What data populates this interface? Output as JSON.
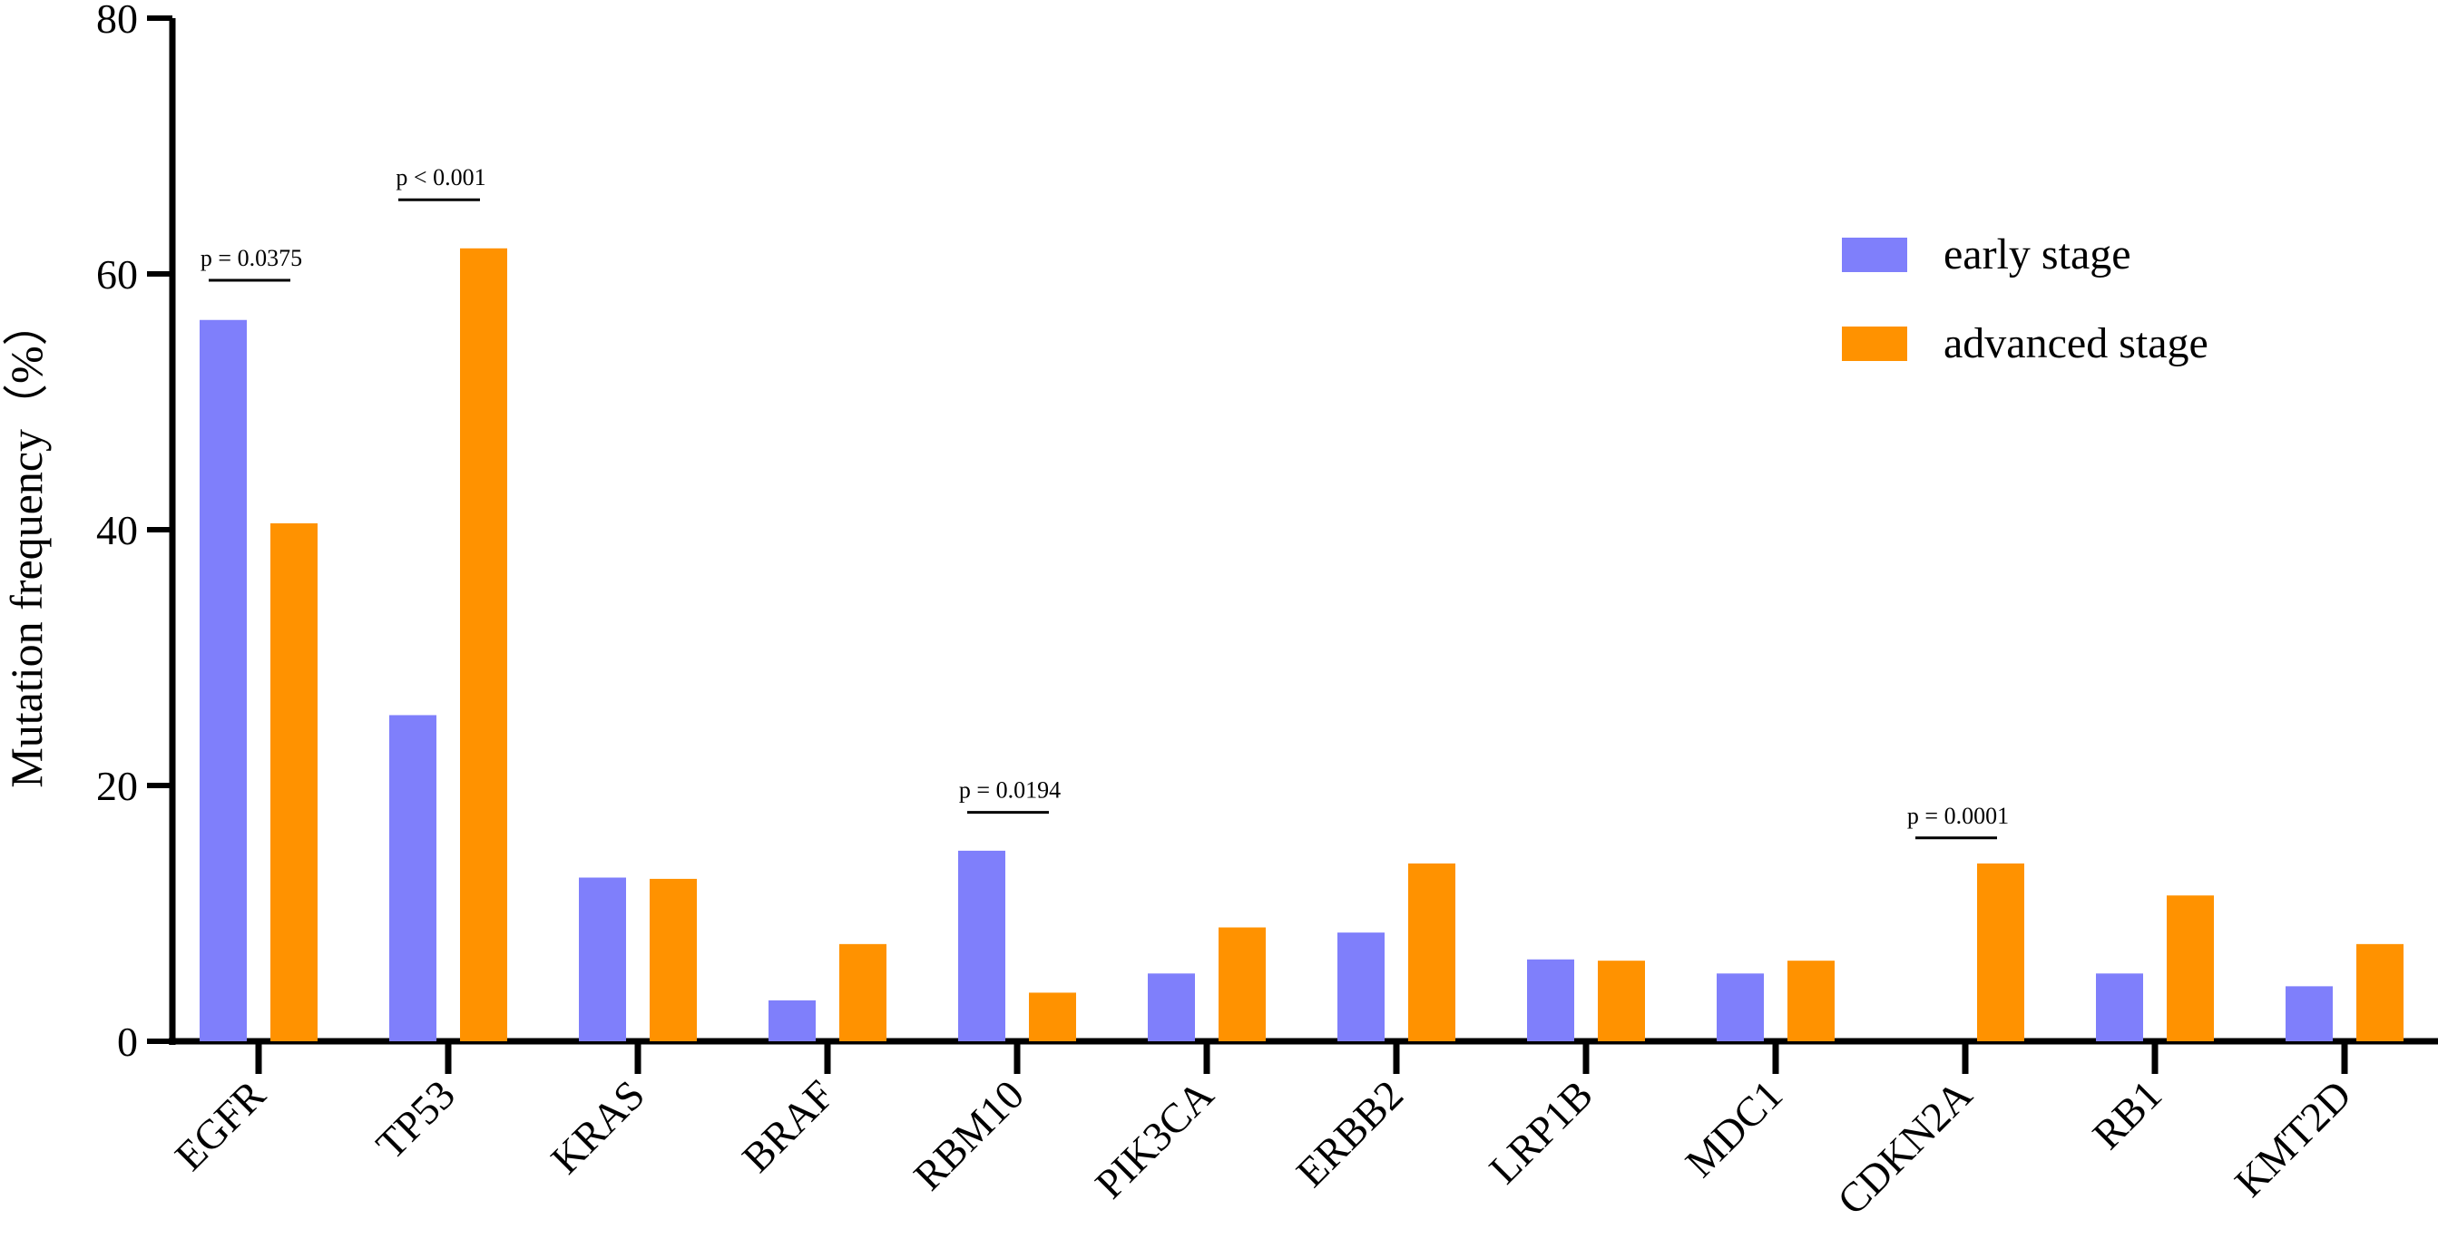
{
  "chart_data": {
    "type": "bar",
    "title": "",
    "xlabel": "",
    "ylabel": "Mutation frequency（%）",
    "ylim": [
      0,
      80
    ],
    "yticks": [
      "0",
      "20",
      "40",
      "60",
      "80"
    ],
    "grid": false,
    "legend_position": "top-right",
    "categories": [
      "EGFR",
      "TP53",
      "KRAS",
      "BRAF",
      "RBM10",
      "PIK3CA",
      "ERBB2",
      "LRP1B",
      "MDC1",
      "CDKN2A",
      "RB1",
      "KMT2D"
    ],
    "series": [
      {
        "name": "early stage",
        "color": "#7f7ffb",
        "values": [
          56.4,
          25.5,
          12.8,
          3.2,
          14.9,
          5.3,
          8.5,
          6.4,
          5.3,
          0,
          5.3,
          4.3
        ]
      },
      {
        "name": "advanced stage",
        "color": "#ff9200",
        "values": [
          40.5,
          62.0,
          12.7,
          7.6,
          3.8,
          8.9,
          13.9,
          6.3,
          6.3,
          13.9,
          11.4,
          7.6
        ]
      }
    ],
    "annotations": [
      {
        "category": "EGFR",
        "label": "p = 0.0375",
        "level": 59.5
      },
      {
        "category": "TP53",
        "label": "p < 0.001",
        "level": 65.8
      },
      {
        "category": "RBM10",
        "label": "p = 0.0194",
        "level": 17.9
      },
      {
        "category": "CDKN2A",
        "label": "p = 0.0001",
        "level": 15.9
      }
    ]
  }
}
